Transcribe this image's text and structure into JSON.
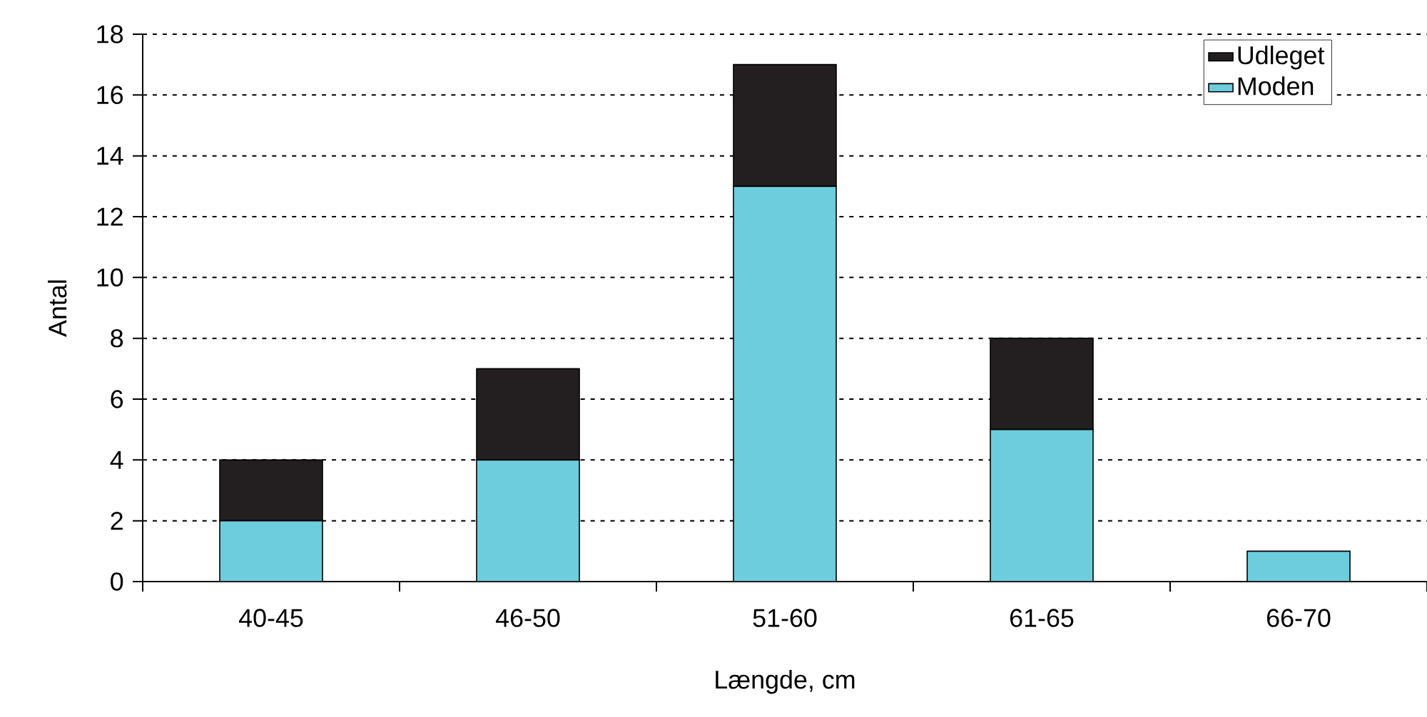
{
  "chart_data": {
    "type": "bar",
    "stacked": true,
    "xlabel": "Længde, cm",
    "ylabel": "Antal",
    "categories": [
      "40-45",
      "46-50",
      "51-60",
      "61-65",
      "66-70"
    ],
    "series": [
      {
        "name": "Moden",
        "color": "#6dcddc",
        "values": [
          2,
          4,
          13,
          5,
          1
        ]
      },
      {
        "name": "Udleget",
        "color": "#231f20",
        "values": [
          2,
          3,
          4,
          3,
          0
        ]
      }
    ],
    "ylim": [
      0,
      18
    ],
    "yticks": [
      0,
      2,
      4,
      6,
      8,
      10,
      12,
      14,
      16,
      18
    ],
    "grid": "y",
    "legend": "top right"
  }
}
